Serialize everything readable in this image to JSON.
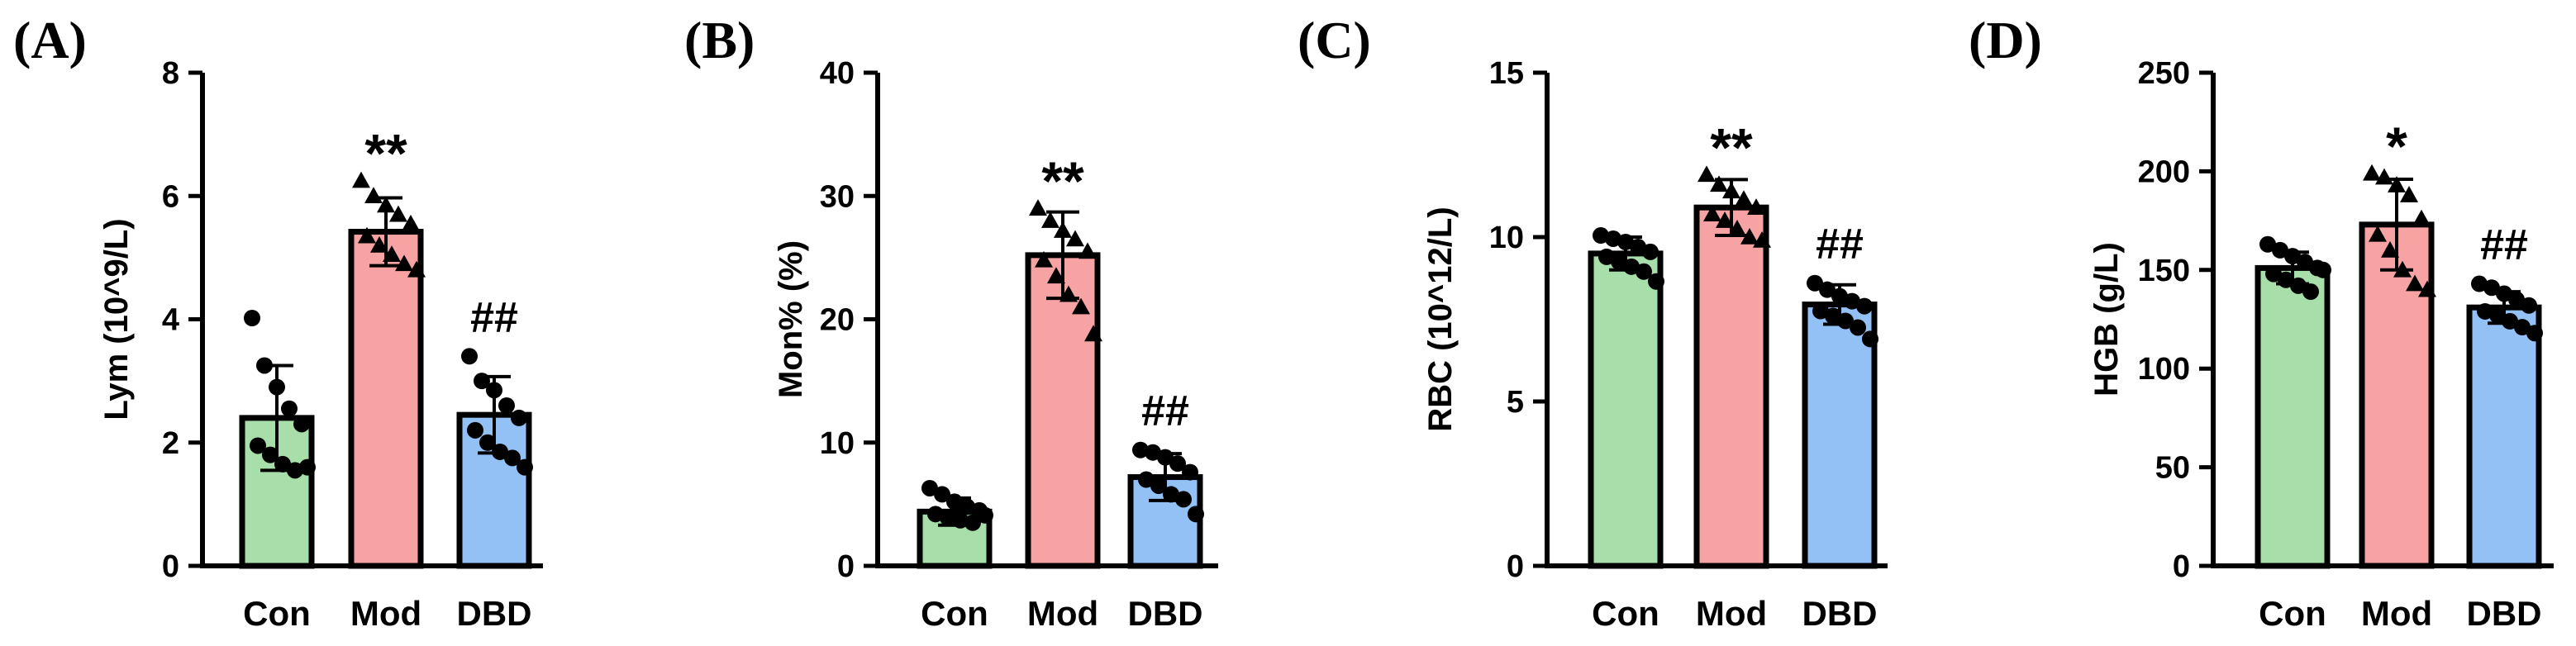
{
  "chart_data": [
    {
      "panel_label": "(A)",
      "type": "bar",
      "categories": [
        "Con",
        "Mod",
        "DBD"
      ],
      "values": [
        2.4,
        5.42,
        2.45
      ],
      "sd": [
        0.85,
        0.55,
        0.62
      ],
      "points": [
        [
          4.02,
          3.25,
          2.9,
          2.55,
          2.3,
          1.95,
          1.8,
          1.65,
          1.55,
          1.6
        ],
        [
          6.25,
          6.0,
          5.85,
          5.7,
          5.55,
          5.35,
          5.2,
          5.05,
          4.9,
          4.8
        ],
        [
          3.4,
          3.0,
          2.85,
          2.6,
          2.4,
          2.2,
          2.0,
          1.85,
          1.75,
          1.6
        ]
      ],
      "point_shapes": [
        "circle",
        "triangle",
        "circle"
      ],
      "significance": [
        "",
        "**",
        "##"
      ],
      "ylabel": "Lym (10^9/L)",
      "ylim": [
        0,
        8
      ],
      "yticks": [
        "0",
        "2",
        "4",
        "6",
        "8"
      ]
    },
    {
      "panel_label": "(B)",
      "type": "bar",
      "categories": [
        "Con",
        "Mod",
        "DBD"
      ],
      "values": [
        4.4,
        25.2,
        7.2
      ],
      "sd": [
        1.1,
        3.5,
        1.9
      ],
      "points": [
        [
          6.3,
          5.8,
          5.2,
          4.8,
          4.5,
          4.2,
          3.9,
          3.7,
          3.5,
          4.1
        ],
        [
          29.0,
          28.0,
          27.2,
          26.5,
          25.5,
          24.8,
          23.5,
          22.0,
          21.0,
          18.8
        ],
        [
          9.4,
          9.2,
          8.8,
          8.3,
          7.6,
          7.0,
          6.5,
          5.8,
          5.4,
          4.2
        ]
      ],
      "point_shapes": [
        "circle",
        "triangle",
        "circle"
      ],
      "significance": [
        "",
        "**",
        "##"
      ],
      "ylabel": "Mon% (%)",
      "ylim": [
        0,
        40
      ],
      "yticks": [
        "0",
        "10",
        "20",
        "30",
        "40"
      ]
    },
    {
      "panel_label": "(C)",
      "type": "bar",
      "categories": [
        "Con",
        "Mod",
        "DBD"
      ],
      "values": [
        9.5,
        10.9,
        7.95
      ],
      "sd": [
        0.5,
        0.85,
        0.6
      ],
      "points": [
        [
          10.05,
          9.95,
          9.85,
          9.7,
          9.55,
          9.4,
          9.25,
          9.1,
          8.95,
          8.65
        ],
        [
          11.9,
          11.6,
          11.4,
          11.15,
          10.9,
          10.7,
          10.5,
          10.25,
          10.0,
          9.9
        ],
        [
          8.6,
          8.4,
          8.2,
          8.05,
          7.9,
          7.75,
          7.6,
          7.45,
          7.25,
          6.9
        ]
      ],
      "point_shapes": [
        "circle",
        "triangle",
        "circle"
      ],
      "significance": [
        "",
        "**",
        "##"
      ],
      "ylabel": "RBC (10^12/L)",
      "ylim": [
        0,
        15
      ],
      "yticks": [
        "0",
        "5",
        "10",
        "15"
      ]
    },
    {
      "panel_label": "(D)",
      "type": "bar",
      "categories": [
        "Con",
        "Mod",
        "DBD"
      ],
      "values": [
        151,
        173,
        131
      ],
      "sd": [
        8,
        23,
        8
      ],
      "points": [
        [
          163,
          160,
          157,
          154,
          151,
          148,
          145,
          142,
          139,
          150
        ],
        [
          199,
          197,
          193,
          188,
          176,
          168,
          160,
          150,
          143,
          140
        ],
        [
          143,
          141,
          138,
          135,
          132,
          129,
          127,
          124,
          121,
          118
        ]
      ],
      "point_shapes": [
        "circle",
        "triangle",
        "circle"
      ],
      "significance": [
        "",
        "*",
        "##"
      ],
      "ylabel": "HGB (g/L)",
      "ylim": [
        0,
        250
      ],
      "yticks": [
        "0",
        "50",
        "100",
        "150",
        "200",
        "250"
      ]
    }
  ],
  "colors": {
    "Con": "#a8deaa",
    "Mod": "#f7a3a4",
    "DBD": "#93c0f5",
    "ink": "#000000"
  }
}
